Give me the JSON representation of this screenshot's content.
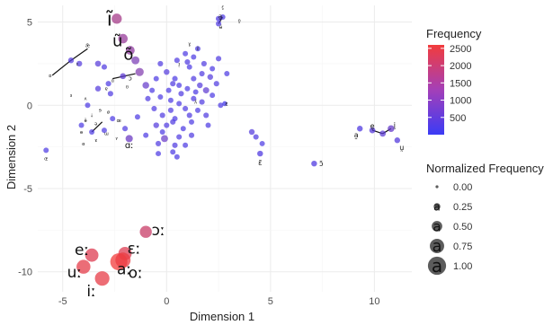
{
  "chart_data": {
    "type": "scatter",
    "title": "",
    "xlabel": "Dimension 1",
    "ylabel": "Dimension 2",
    "xlim": [
      -6.2,
      11.8
    ],
    "ylim": [
      -11.2,
      6.0
    ],
    "x_ticks": [
      -5,
      0,
      5,
      10
    ],
    "y_ticks": [
      -10,
      -5,
      0,
      5
    ],
    "grid": true,
    "color_legend": {
      "title": "Frequency",
      "min": 0,
      "max": 2600,
      "ticks": [
        500,
        1000,
        1500,
        2000,
        2500
      ],
      "low_color": "#3b3bf5",
      "high_color": "#f23c3c"
    },
    "size_legend": {
      "title": "Normalized Frequency",
      "values": [
        0.0,
        0.25,
        0.5,
        0.75,
        1.0
      ],
      "labels": [
        "0.00",
        "0.25",
        "0.50",
        "0.75",
        "1.00"
      ],
      "glyph": "a"
    },
    "labeled_points": [
      {
        "label": "ĩ",
        "x": -2.4,
        "y": 5.2,
        "freq": 1500,
        "nfreq": 0.45,
        "fs": 22
      },
      {
        "label": "ũ",
        "x": -2.1,
        "y": 4.0,
        "freq": 1300,
        "nfreq": 0.4,
        "fs": 18
      },
      {
        "label": "õ",
        "x": -1.75,
        "y": 3.3,
        "freq": 1200,
        "nfreq": 0.35,
        "fs": 18
      },
      {
        "label": "ɔː",
        "x": -1.0,
        "y": -7.6,
        "freq": 2000,
        "nfreq": 0.6,
        "fs": 17
      },
      {
        "label": "eː",
        "x": -3.6,
        "y": -9.0,
        "freq": 2300,
        "nfreq": 0.7,
        "fs": 17
      },
      {
        "label": "ɛː",
        "x": -2.0,
        "y": -8.9,
        "freq": 2300,
        "nfreq": 0.7,
        "fs": 17
      },
      {
        "label": "uː",
        "x": -4.0,
        "y": -9.7,
        "freq": 2400,
        "nfreq": 0.75,
        "fs": 17
      },
      {
        "label": "aː",
        "x": -2.3,
        "y": -9.4,
        "freq": 2600,
        "nfreq": 1.0,
        "fs": 17
      },
      {
        "label": "oː",
        "x": -2.1,
        "y": -9.3,
        "freq": 2500,
        "nfreq": 0.85,
        "fs": 17
      },
      {
        "label": "iː",
        "x": -3.1,
        "y": -10.4,
        "freq": 2450,
        "nfreq": 0.8,
        "fs": 17
      },
      {
        "label": "ɑː",
        "x": -1.8,
        "y": -2.0,
        "freq": 700,
        "nfreq": 0.22,
        "fs": 10
      },
      {
        "label": "ɛ̃",
        "x": 4.5,
        "y": -2.9,
        "freq": 300,
        "nfreq": 0.1,
        "fs": 8
      },
      {
        "label": "ɔ̃",
        "x": 7.1,
        "y": -3.5,
        "freq": 300,
        "nfreq": 0.1,
        "fs": 8
      },
      {
        "label": "a̰",
        "x": 9.3,
        "y": -1.4,
        "freq": 300,
        "nfreq": 0.1,
        "fs": 8
      },
      {
        "label": "ḛ",
        "x": 9.9,
        "y": -1.5,
        "freq": 400,
        "nfreq": 0.12,
        "fs": 8
      },
      {
        "label": "ḭ",
        "x": 10.8,
        "y": -1.4,
        "freq": 600,
        "nfreq": 0.18,
        "fs": 8
      },
      {
        "label": "ṵ",
        "x": 11.1,
        "y": -2.1,
        "freq": 350,
        "nfreq": 0.1,
        "fs": 8
      },
      {
        "label": "a̰",
        "x": 2.5,
        "y": 5.2,
        "freq": 300,
        "nfreq": 0.08,
        "fs": 7
      },
      {
        "label": "ɔ",
        "x": -2.1,
        "y": 1.75,
        "freq": 500,
        "nfreq": 0.12,
        "fs": 7
      },
      {
        "label": "ɛ",
        "x": 2.8,
        "y": 0.1,
        "freq": 150,
        "nfreq": 0.04,
        "fs": 6
      }
    ],
    "points": [
      [
        -1.5,
        2.7,
        900,
        0.28
      ],
      [
        -1.3,
        2.0,
        1000,
        0.3
      ],
      [
        -1.0,
        1.2,
        600,
        0.18
      ],
      [
        -3.3,
        2.5,
        400,
        0.12
      ],
      [
        -4.2,
        2.5,
        350,
        0.1
      ],
      [
        -3.0,
        2.3,
        300,
        0.08
      ],
      [
        -2.8,
        1.3,
        250,
        0.08
      ],
      [
        -3.3,
        1.0,
        350,
        0.1
      ],
      [
        -2.7,
        0.7,
        300,
        0.08
      ],
      [
        -0.3,
        2.5,
        300,
        0.08
      ],
      [
        0.0,
        2.0,
        350,
        0.1
      ],
      [
        0.4,
        1.6,
        250,
        0.08
      ],
      [
        1.1,
        2.3,
        250,
        0.07
      ],
      [
        1.3,
        1.6,
        300,
        0.08
      ],
      [
        1.6,
        1.2,
        350,
        0.1
      ],
      [
        1.9,
        0.9,
        500,
        0.14
      ],
      [
        1.3,
        0.4,
        300,
        0.08
      ],
      [
        0.6,
        0.1,
        250,
        0.07
      ],
      [
        0.2,
        -0.3,
        300,
        0.08
      ],
      [
        -0.2,
        -0.6,
        300,
        0.08
      ],
      [
        -0.5,
        -1.2,
        350,
        0.1
      ],
      [
        -0.2,
        -1.6,
        250,
        0.07
      ],
      [
        0.3,
        -1.0,
        300,
        0.08
      ],
      [
        0.8,
        -1.4,
        250,
        0.07
      ],
      [
        1.2,
        -1.8,
        300,
        0.08
      ],
      [
        0.9,
        -2.4,
        250,
        0.07
      ],
      [
        0.3,
        -2.8,
        250,
        0.07
      ],
      [
        -0.4,
        -2.3,
        300,
        0.08
      ],
      [
        -1.0,
        -1.8,
        250,
        0.07
      ],
      [
        -0.6,
        -0.2,
        300,
        0.08
      ],
      [
        0.1,
        0.9,
        250,
        0.07
      ],
      [
        0.7,
        0.7,
        300,
        0.08
      ],
      [
        1.0,
        1.0,
        250,
        0.07
      ],
      [
        0.5,
        2.7,
        300,
        0.08
      ],
      [
        1.3,
        2.9,
        250,
        0.07
      ],
      [
        1.8,
        2.5,
        300,
        0.08
      ],
      [
        2.2,
        2.2,
        250,
        0.07
      ],
      [
        2.1,
        1.7,
        350,
        0.1
      ],
      [
        2.4,
        1.3,
        300,
        0.08
      ],
      [
        2.2,
        0.6,
        250,
        0.07
      ],
      [
        1.7,
        0.2,
        300,
        0.08
      ],
      [
        1.5,
        -0.3,
        250,
        0.07
      ],
      [
        0.9,
        -0.2,
        300,
        0.08
      ],
      [
        0.4,
        -0.8,
        250,
        0.07
      ],
      [
        0.0,
        -1.2,
        300,
        0.08
      ],
      [
        -0.3,
        0.5,
        250,
        0.07
      ],
      [
        0.2,
        0.3,
        250,
        0.07
      ],
      [
        0.6,
        1.2,
        250,
        0.07
      ],
      [
        1.4,
        0.8,
        250,
        0.07
      ],
      [
        1.9,
        -0.6,
        300,
        0.08
      ],
      [
        1.2,
        -1.0,
        250,
        0.07
      ],
      [
        0.6,
        -1.9,
        300,
        0.08
      ],
      [
        -0.1,
        -2.0,
        650,
        0.2
      ],
      [
        0.5,
        -3.1,
        250,
        0.07
      ],
      [
        -0.7,
        0.9,
        250,
        0.07
      ],
      [
        2.5,
        2.8,
        300,
        0.08
      ],
      [
        2.9,
        1.9,
        250,
        0.07
      ],
      [
        0.9,
        3.1,
        250,
        0.07
      ],
      [
        1.5,
        3.4,
        250,
        0.07
      ],
      [
        -0.5,
        1.6,
        250,
        0.07
      ],
      [
        -1.4,
        -0.7,
        250,
        0.07
      ],
      [
        -2.0,
        -1.4,
        300,
        0.08
      ],
      [
        -3.0,
        -1.5,
        250,
        0.07
      ],
      [
        -3.6,
        -1.6,
        250,
        0.07
      ],
      [
        -4.1,
        -1.2,
        250,
        0.07
      ],
      [
        -2.6,
        -0.8,
        250,
        0.07
      ],
      [
        -3.8,
        0.0,
        250,
        0.07
      ],
      [
        -5.8,
        -2.7,
        250,
        0.07
      ],
      [
        -4.6,
        2.7,
        350,
        0.1
      ],
      [
        2.5,
        4.9,
        300,
        0.08
      ],
      [
        2.7,
        5.3,
        250,
        0.07
      ],
      [
        4.1,
        -1.6,
        350,
        0.1
      ],
      [
        4.3,
        -1.9,
        300,
        0.08
      ],
      [
        4.6,
        -2.3,
        250,
        0.07
      ],
      [
        10.4,
        -1.7,
        450,
        0.14
      ],
      [
        1.0,
        2.6,
        300,
        0.08
      ],
      [
        0.3,
        1.3,
        300,
        0.08
      ],
      [
        1.7,
        1.9,
        300,
        0.08
      ],
      [
        -0.9,
        0.4,
        300,
        0.08
      ],
      [
        1.1,
        -0.6,
        300,
        0.08
      ],
      [
        0.4,
        -2.4,
        300,
        0.08
      ],
      [
        -0.4,
        -2.9,
        250,
        0.07
      ],
      [
        2.6,
        0.0,
        250,
        0.07
      ],
      [
        2.0,
        -1.2,
        250,
        0.07
      ]
    ],
    "connectors": [
      [
        -4.6,
        2.7,
        -5.5,
        1.8
      ],
      [
        -4.6,
        2.7,
        -3.8,
        3.4
      ],
      [
        -1.5,
        1.9,
        -2.6,
        1.6
      ],
      [
        2.5,
        4.9,
        2.7,
        5.3
      ],
      [
        -3.6,
        -1.6,
        -3.1,
        -1.0
      ],
      [
        10.4,
        -1.7,
        9.9,
        -1.5
      ],
      [
        10.4,
        -1.7,
        10.8,
        -1.4
      ]
    ],
    "tiny_labels": [
      [
        "æ̃",
        -3.8,
        3.5
      ],
      [
        "ɪ",
        -4.3,
        2.4
      ],
      [
        "ɒ",
        -5.6,
        1.7
      ],
      [
        "ɑ",
        -2.6,
        1.4
      ],
      [
        "ʌ",
        -3.9,
        0.3
      ],
      [
        "ɐ",
        -2.9,
        0.9
      ],
      [
        "ɜ",
        -4.6,
        0.5
      ],
      [
        "ʊ",
        -1.9,
        1.0
      ],
      [
        "ɘ",
        -3.2,
        -0.4
      ],
      [
        "ɨ",
        -3.6,
        -0.7
      ],
      [
        "ø",
        -2.8,
        -0.5
      ],
      [
        "œ",
        -2.3,
        -1.0
      ],
      [
        "ə",
        -3.4,
        -1.2
      ],
      [
        "ɵ",
        -4.1,
        -1.7
      ],
      [
        "ɯ",
        -2.9,
        -1.8
      ],
      [
        "ɤ",
        -3.4,
        -2.2
      ],
      [
        "ɞ",
        -4.0,
        -2.4
      ],
      [
        "ʏ",
        -2.4,
        -2.1
      ],
      [
        "ɶ",
        -5.8,
        -3.3
      ],
      [
        "ɵ̃",
        -3.9,
        -1.0
      ],
      [
        "ɣ",
        1.1,
        3.6
      ],
      [
        "ɪ̃",
        1.5,
        3.3
      ],
      [
        "ʉ̃",
        2.6,
        4.6
      ],
      [
        "ɛ̰",
        2.7,
        5.8
      ],
      [
        "o̰",
        3.5,
        5.0
      ],
      [
        "ɪ̰",
        0.6,
        2.4
      ],
      [
        "ʌ̃",
        1.4,
        0.1
      ]
    ]
  }
}
